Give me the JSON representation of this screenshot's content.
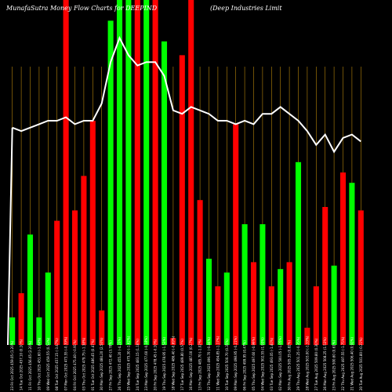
{
  "header": {
    "title": "MunafaSutra Money Flow  Charts for DEEPIND",
    "company": "(Deep Industries Limit"
  },
  "colors": {
    "background": "#000000",
    "up": "#00ff00",
    "down": "#ff0000",
    "grid": "#b8860b",
    "line": "#ffffff",
    "text": "#ffffff"
  },
  "chart_data": {
    "type": "bar",
    "title": "MunafaSutra Money Flow  Charts for DEEPIND",
    "subtitle": "(Deep Industries Limit",
    "xlabel": "",
    "ylabel": "",
    "ylim": [
      0,
      100
    ],
    "grid": "vertical",
    "categories": [
      "23 Fri Oct 2025 459.05 (1.20%)",
      "14 Tue Oct 2025 457.10 (0.10%)",
      "11 Fri Oct 2025 456.65 (2.20%)",
      "10 Thu Oct 2025 451.60 (-1.84%)",
      "09 Wed Oct 2025 459.55 (0.53%)",
      "08 Tue Oct 2025 457.15 (-3.47%)",
      "07 Mon Oct 2025 473.55 (-0.39%)",
      "04 Fri Oct 2025 475.40 (-0.91%)",
      "03 Thu Oct 2025 479.75 (-1.38%)",
      "01 Tue Oct 2025 486.45 (0.47%)",
      "30 Mon Sep 2025 484.20 (2.50%)",
      "27 Fri Sep 2025 472.40 (3.78%)",
      "26 Thu Sep 2025 455.20 (-4.23%)",
      "25 Wed Sep 2025 475.30 (-1.62%)",
      "24 Tue Sep 2025 483.15 (1.16%)",
      "23 Mon Sep 2025 477.60 (-0.18%)",
      "20 Fri Sep 2025 478.45 (-0.10%)",
      "19 Thu Sep 2025 478.95 (-1.53%)",
      "18 Wed Sep 2025 486.40 (-0.69%)",
      "17 Tue Sep 2025 489.80 (0.57%)",
      "16 Mon Sep 2025 487.00 (0.27%)",
      "13 Fri Sep 2025 485.70 (-1.02%)",
      "12 Thu Sep 2025 490.70 (-0.84%)",
      "11 Wed Sep 2025 494.85 (-1.17%)",
      "10 Tue Sep 2025 500.70 (0.35%)",
      "09 Mon Sep 2025 498.95 (-0.21%)",
      "06 Fri Sep 2025 499.95 (0.47%)",
      "05 Thu Sep 2025 497.60 (-0.99%)",
      "04 Wed Sep 2025 502.55 (1.93%)",
      "03 Tue Sep 2025 493.05 (-1.40%)",
      "02 Mon Sep 2025 500.05 (-1.05%)",
      "30 Fri Aug 2025 505.35 (0.82%)",
      "29 Thu Aug 2025 501.25 (-0.35%)",
      "28 Wed Aug 2025 503.00 (-1.33%)",
      "27 Tue Aug 2025 509.80 (0.30%)",
      "26 Mon Aug 2025 508.25 (1.53%)",
      "23 Fri Aug 2025 500.60 (0.61%)",
      "22 Thu Aug 2025 497.55 (-1.75%)",
      "21 Wed Aug 2025 506.40 (0.92%)",
      "20 Tue Aug 2025 501.80 (-0.21%)"
    ],
    "series": [
      {
        "values": [
          8,
          15,
          32,
          8,
          21,
          36,
          100,
          39,
          49,
          65,
          10,
          94,
          100,
          100,
          100,
          100,
          100,
          88,
          2,
          84,
          100,
          42,
          25,
          17,
          21,
          64,
          35,
          24,
          35,
          17,
          22,
          24,
          53,
          5,
          17,
          40,
          23,
          50,
          47,
          39
        ],
        "direction": [
          "up",
          "down",
          "up",
          "up",
          "up",
          "down",
          "down",
          "down",
          "down",
          "down",
          "down",
          "up",
          "up",
          "up",
          "down",
          "up",
          "down",
          "up",
          "down",
          "down",
          "down",
          "down",
          "up",
          "down",
          "up",
          "down",
          "up",
          "down",
          "up",
          "down",
          "up",
          "down",
          "up",
          "down",
          "down",
          "down",
          "up",
          "down",
          "up",
          "down"
        ]
      },
      {
        "type": "line",
        "values": [
          63,
          62,
          63,
          64,
          65,
          65,
          66,
          64,
          65,
          65,
          70,
          82,
          89,
          84,
          81,
          82,
          82,
          78,
          68,
          67,
          69,
          68,
          67,
          65,
          65,
          64,
          65,
          64,
          67,
          67,
          69,
          67,
          65,
          62,
          58,
          61,
          56,
          60,
          61,
          59
        ]
      }
    ]
  }
}
